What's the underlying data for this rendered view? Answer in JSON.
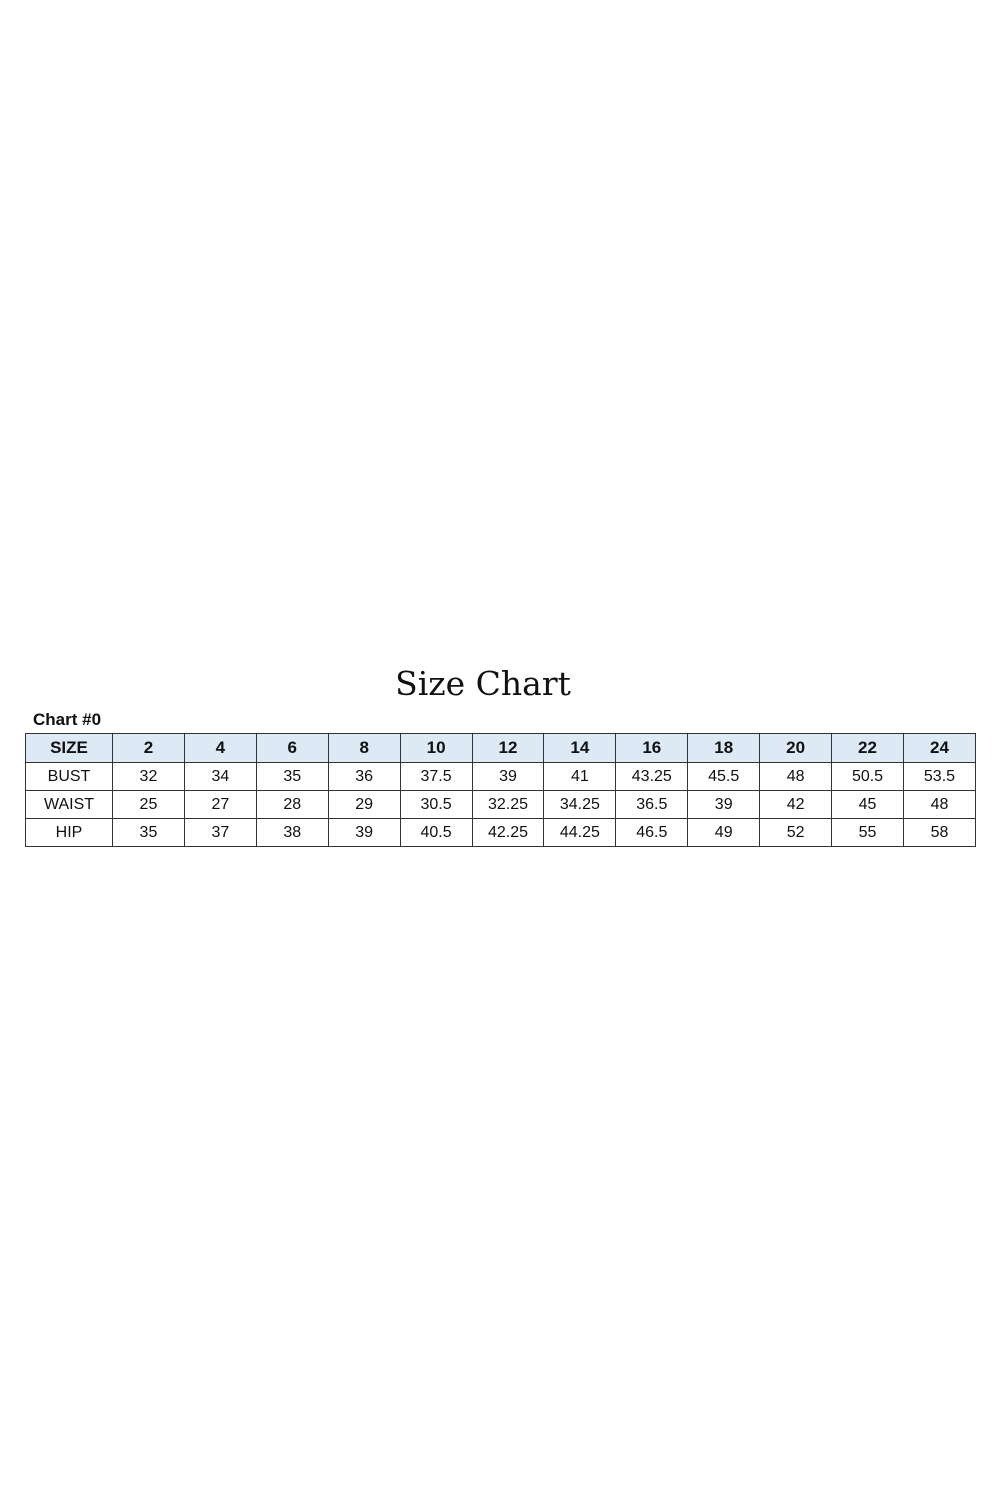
{
  "title": "Size Chart",
  "subtitle": "Chart #0",
  "header_color": "#dde9f5",
  "table": {
    "headers": [
      "SIZE",
      "2",
      "4",
      "6",
      "8",
      "10",
      "12",
      "14",
      "16",
      "18",
      "20",
      "22",
      "24"
    ],
    "rows": [
      [
        "BUST",
        "32",
        "34",
        "35",
        "36",
        "37.5",
        "39",
        "41",
        "43.25",
        "45.5",
        "48",
        "50.5",
        "53.5"
      ],
      [
        "WAIST",
        "25",
        "27",
        "28",
        "29",
        "30.5",
        "32.25",
        "34.25",
        "36.5",
        "39",
        "42",
        "45",
        "48"
      ],
      [
        "HIP",
        "35",
        "37",
        "38",
        "39",
        "40.5",
        "42.25",
        "44.25",
        "46.5",
        "49",
        "52",
        "55",
        "58"
      ]
    ]
  }
}
